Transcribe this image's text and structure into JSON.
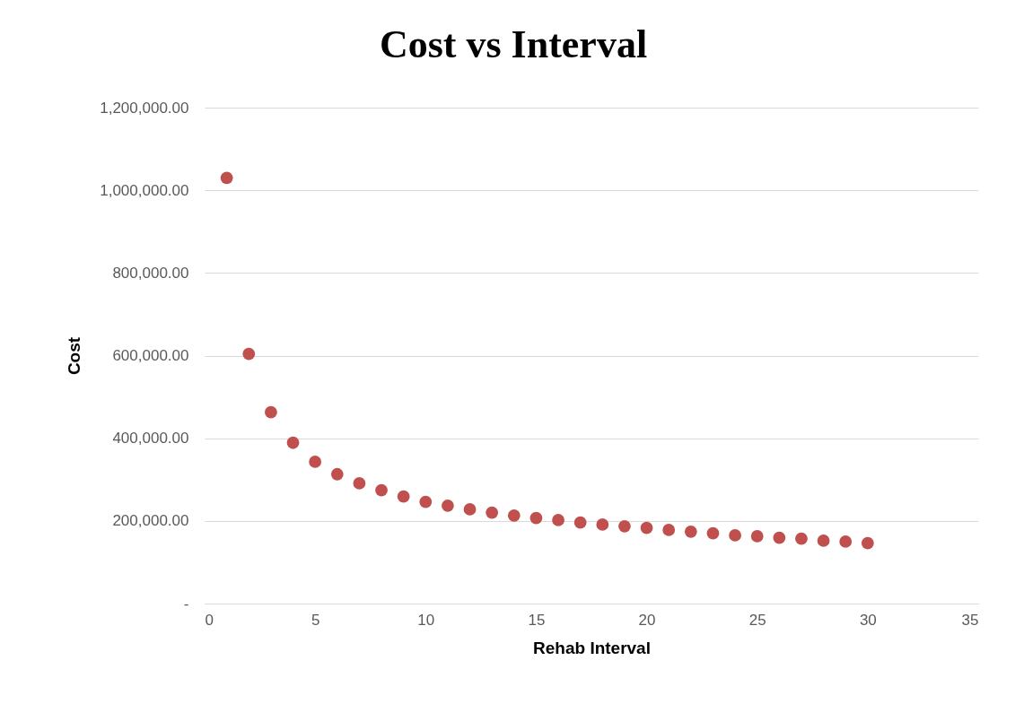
{
  "chart_data": {
    "type": "scatter",
    "title": "Cost vs Interval",
    "xlabel": "Rehab Interval",
    "ylabel": "Cost",
    "x": [
      1,
      2,
      3,
      4,
      5,
      6,
      7,
      8,
      9,
      10,
      11,
      12,
      13,
      14,
      15,
      16,
      17,
      18,
      19,
      20,
      21,
      22,
      23,
      24,
      25,
      26,
      27,
      28,
      29,
      30
    ],
    "series": [
      {
        "color": "#c0504d",
        "values": [
          1030000,
          604000,
          463000,
          389000,
          343000,
          313000,
          291000,
          274000,
          259000,
          246000,
          237000,
          228000,
          220000,
          213000,
          207000,
          202000,
          196000,
          191000,
          187000,
          183000,
          178000,
          174000,
          170000,
          165000,
          163000,
          159000,
          157000,
          152000,
          150000,
          146000
        ]
      }
    ],
    "xlim": [
      0,
      35
    ],
    "xticks": [
      0,
      5,
      10,
      15,
      20,
      25,
      30,
      35
    ],
    "ylim": [
      0,
      1200000
    ],
    "yticks": [
      {
        "value": 0,
        "label": "-"
      },
      {
        "value": 200000,
        "label": "200,000.00"
      },
      {
        "value": 400000,
        "label": "400,000.00"
      },
      {
        "value": 600000,
        "label": "600,000.00"
      },
      {
        "value": 800000,
        "label": "800,000.00"
      },
      {
        "value": 1000000,
        "label": "1,000,000.00"
      },
      {
        "value": 1200000,
        "label": "1,200,000.00"
      }
    ],
    "grid": "y",
    "marker": "circle"
  }
}
